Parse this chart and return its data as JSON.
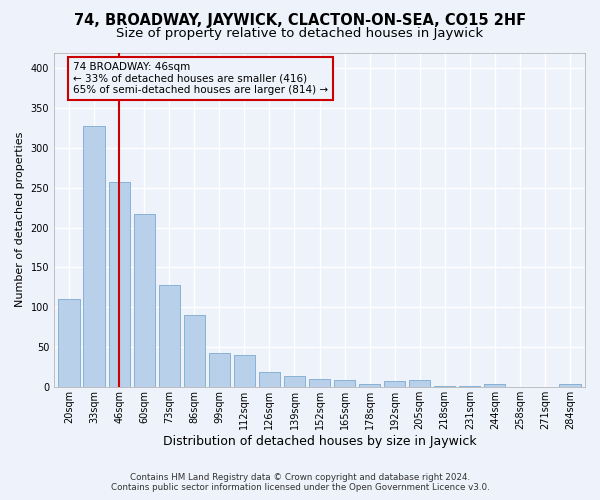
{
  "title": "74, BROADWAY, JAYWICK, CLACTON-ON-SEA, CO15 2HF",
  "subtitle": "Size of property relative to detached houses in Jaywick",
  "xlabel": "Distribution of detached houses by size in Jaywick",
  "ylabel": "Number of detached properties",
  "categories": [
    "20sqm",
    "33sqm",
    "46sqm",
    "60sqm",
    "73sqm",
    "86sqm",
    "99sqm",
    "112sqm",
    "126sqm",
    "139sqm",
    "152sqm",
    "165sqm",
    "178sqm",
    "192sqm",
    "205sqm",
    "218sqm",
    "231sqm",
    "244sqm",
    "258sqm",
    "271sqm",
    "284sqm"
  ],
  "values": [
    110,
    328,
    257,
    217,
    128,
    90,
    42,
    40,
    18,
    14,
    10,
    8,
    4,
    7,
    8,
    1,
    1,
    4,
    0,
    0,
    3
  ],
  "bar_color": "#b8d0ea",
  "bar_edge_color": "#6a9fc8",
  "marker_index": 2,
  "marker_label": "74 BROADWAY: 46sqm",
  "annotation_line1": "← 33% of detached houses are smaller (416)",
  "annotation_line2": "65% of semi-detached houses are larger (814) →",
  "marker_color": "#cc0000",
  "background_color": "#eef2fa",
  "grid_color": "#ffffff",
  "footer1": "Contains HM Land Registry data © Crown copyright and database right 2024.",
  "footer2": "Contains public sector information licensed under the Open Government Licence v3.0.",
  "ylim": [
    0,
    420
  ],
  "title_fontsize": 10.5,
  "subtitle_fontsize": 9.5,
  "tick_fontsize": 7,
  "ylabel_fontsize": 8,
  "xlabel_fontsize": 9,
  "annotation_box_edge_color": "#cc0000",
  "annotation_fontsize": 7.5
}
